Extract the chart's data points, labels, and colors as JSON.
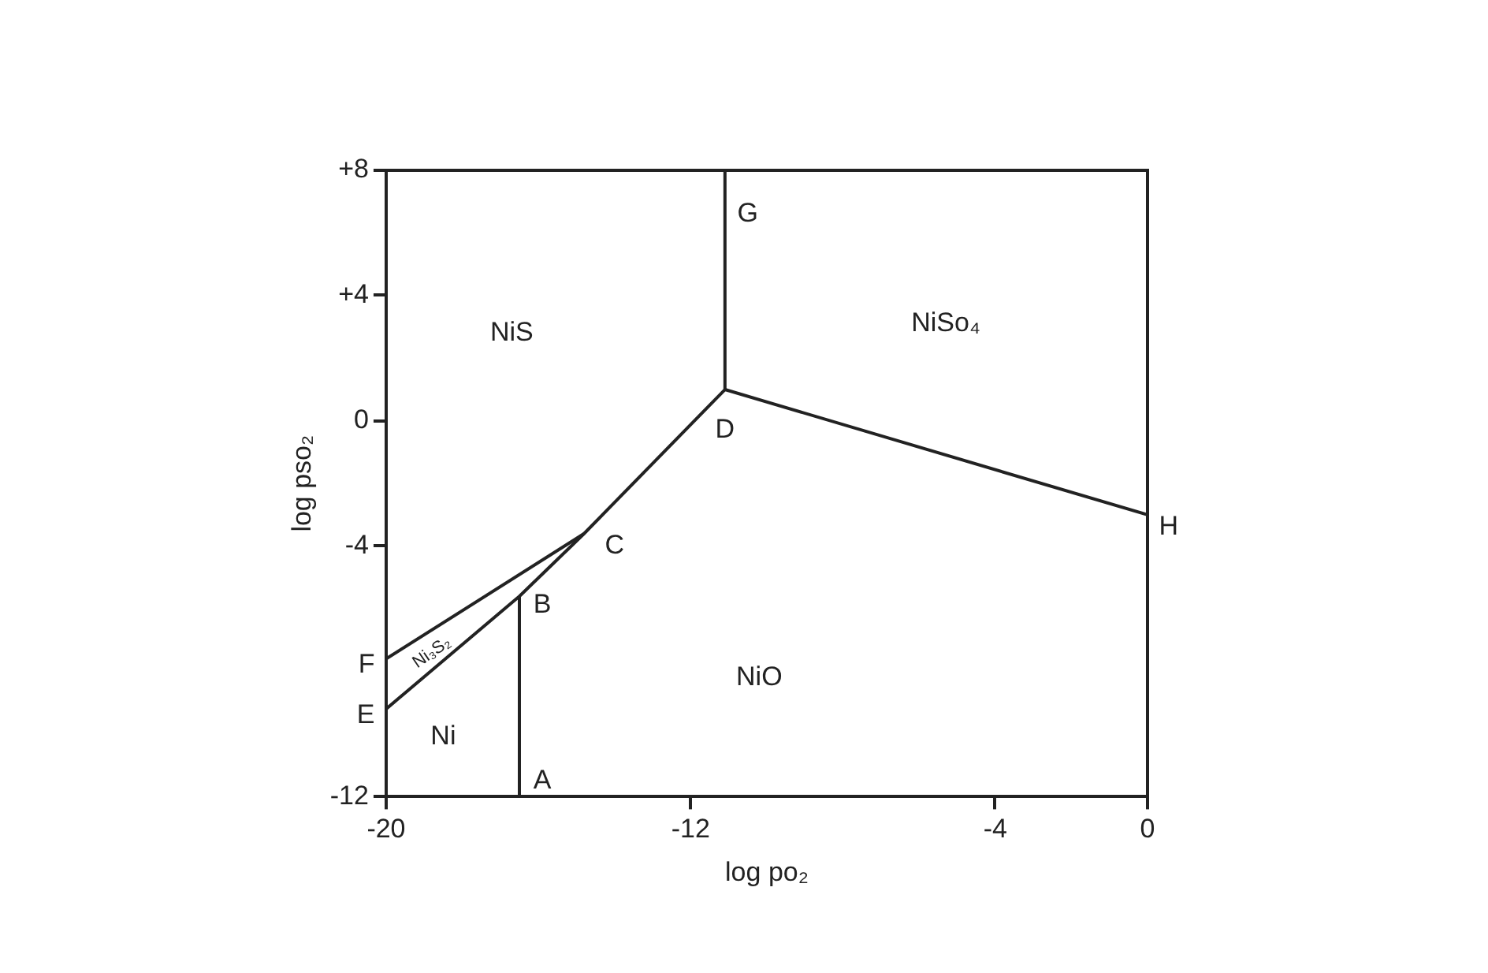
{
  "chart_data": {
    "type": "line",
    "xlabel": "log po₂",
    "ylabel": "log pso₂",
    "xlim": [
      -20,
      0
    ],
    "ylim": [
      -12,
      8
    ],
    "xticks": [
      -20,
      -12,
      -4,
      0
    ],
    "yticks": [
      -12,
      -4,
      0,
      {
        "value": 4,
        "label": "+4"
      },
      {
        "value": 8,
        "label": "+8"
      }
    ],
    "grid": false,
    "legend": false,
    "marker": "none",
    "line_style": "solid",
    "series": [
      {
        "color": "#222222",
        "x": [
          -20,
          -16.5,
          -14.8,
          -11.1
        ],
        "values": [
          -9.2,
          -5.6,
          -3.6,
          1.0
        ]
      },
      {
        "color": "#222222",
        "x": [
          -20,
          -14.8
        ],
        "values": [
          -7.6,
          -3.6
        ]
      },
      {
        "color": "#222222",
        "x": [
          -16.5,
          -16.5
        ],
        "values": [
          -12,
          -5.6
        ]
      },
      {
        "color": "#222222",
        "x": [
          -11.1,
          -11.1
        ],
        "values": [
          1.0,
          8
        ]
      },
      {
        "color": "#222222",
        "x": [
          -11.1,
          0
        ],
        "values": [
          1.0,
          -3.0
        ]
      }
    ],
    "annotations": [
      "NiS",
      "NiSo₄",
      "NiO",
      "Ni",
      "Ni₃S₂",
      "A",
      "B",
      "C",
      "D",
      "G",
      "E",
      "F",
      "H"
    ]
  }
}
